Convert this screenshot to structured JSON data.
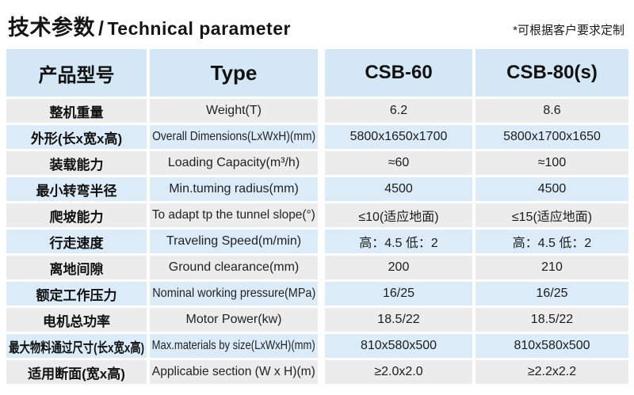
{
  "header": {
    "title_cn": "技术参数",
    "title_divider": "/",
    "title_en": "Technical parameter",
    "note": "*可根据客户要求定制"
  },
  "colors": {
    "header_blue": "#d4e7f5",
    "row_blue": "#dbecf8",
    "row_gray": "#ececec",
    "text": "#1c1c1c"
  },
  "table": {
    "columns": {
      "cn": "产品型号",
      "en": "Type",
      "model1": "CSB-60",
      "model2": "CSB-80(s)"
    },
    "rows": [
      {
        "cn": "整机重量",
        "en": "Weight(T)",
        "v1": "6.2",
        "v2": "8.6"
      },
      {
        "cn": "外形(长x宽x高)",
        "en": "Overall Dimensions(LxWxH)(mm)",
        "v1": "5800x1650x1700",
        "v2": "5800x1700x1650"
      },
      {
        "cn": "装载能力",
        "en": "Loading Capacity(m³/h)",
        "v1": "≈60",
        "v2": "≈100"
      },
      {
        "cn": "最小转弯半径",
        "en": "Min.tuming radius(mm)",
        "v1": "4500",
        "v2": "4500"
      },
      {
        "cn": "爬坡能力",
        "en": "To adapt tp the tunnel slope(°)",
        "v1": "≤10(适应地面)",
        "v2": "≤15(适应地面)"
      },
      {
        "cn": "行走速度",
        "en": "Traveling Speed(m/min)",
        "v1": "高：4.5 低：2",
        "v2": "高：4.5 低：2"
      },
      {
        "cn": "离地间隙",
        "en": "Ground clearance(mm)",
        "v1": "200",
        "v2": "210"
      },
      {
        "cn": "额定工作压力",
        "en": "Nominal working pressure(MPa)",
        "v1": "16/25",
        "v2": "16/25"
      },
      {
        "cn": "电机总功率",
        "en": "Motor Power(kw)",
        "v1": "18.5/22",
        "v2": "18.5/22"
      },
      {
        "cn": "最大物料通过尺寸(长x宽x高)",
        "en": "Max.materials by size(LxWxH)(mm)",
        "v1": "810x580x500",
        "v2": "810x580x500"
      },
      {
        "cn": "适用断面(宽x高)",
        "en": "Applicabie section (W x H)(m)",
        "v1": "≥2.0x2.0",
        "v2": "≥2.2x2.2"
      }
    ]
  }
}
